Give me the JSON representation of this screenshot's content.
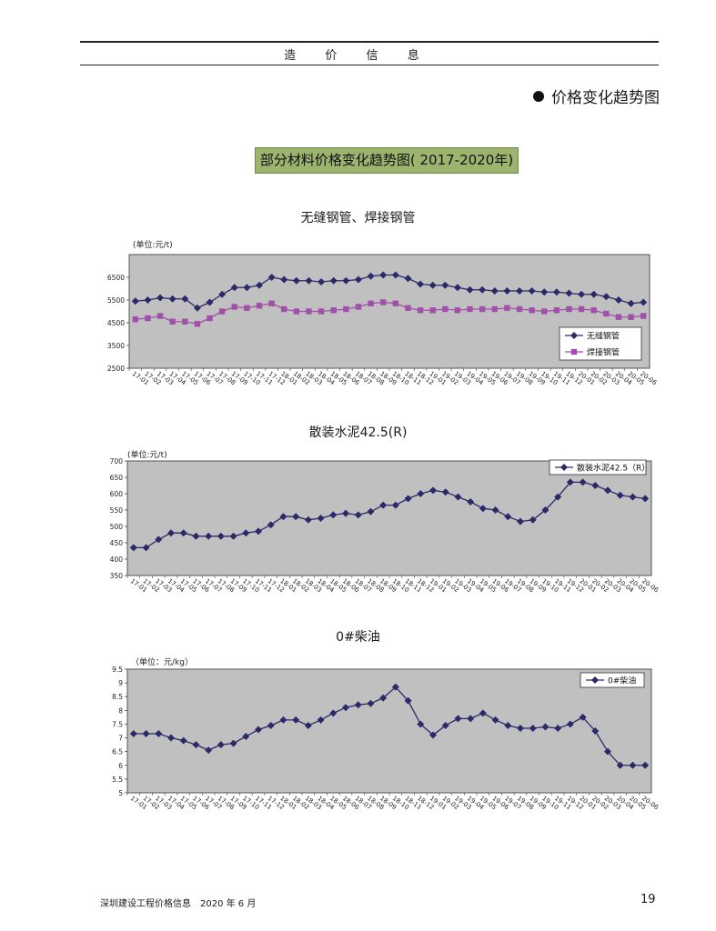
{
  "header": {
    "title": "造 价 信 息"
  },
  "section": {
    "heading": "价格变化趋势图"
  },
  "banner": {
    "text": "部分材料价格变化趋势图( 2017-2020年)"
  },
  "footer": {
    "left": "深圳建设工程价格信息　2020 年 6 月",
    "page": "19"
  },
  "colors": {
    "plot_bg": "#c0c0c0",
    "navy": "#2a2a6a",
    "magenta": "#a050a8",
    "banner": "#9cb46e"
  },
  "chart_data": [
    {
      "type": "line",
      "title": "无缝钢管、焊接钢管",
      "unit_label": "(单位:元/t)",
      "ylim": [
        2500,
        7500
      ],
      "yticks": [
        2500,
        3500,
        4500,
        5500,
        6500
      ],
      "grid": false,
      "legend": "bottom-right",
      "categories": [
        "17-01",
        "17-02",
        "17-03",
        "17-04",
        "17-05",
        "17-06",
        "17-07",
        "17-08",
        "17-09",
        "17-10",
        "17-11",
        "17-12",
        "18-01",
        "18-02",
        "18-03",
        "18-04",
        "18-05",
        "18-06",
        "18-07",
        "18-08",
        "18-09",
        "18-10",
        "18-11",
        "18-12",
        "19-01",
        "19-02",
        "19-03",
        "19-04",
        "19-05",
        "19-06",
        "19-07",
        "19-08",
        "19-09",
        "19-10",
        "19-11",
        "19-12",
        "20-01",
        "20-02",
        "20-03",
        "20-04",
        "20-05",
        "20-06"
      ],
      "series": [
        {
          "name": "无缝钢管",
          "marker": "diamond",
          "color": "#2a2a6a",
          "values": [
            5450,
            5500,
            5600,
            5550,
            5550,
            5150,
            5400,
            5750,
            6050,
            6050,
            6150,
            6500,
            6400,
            6350,
            6350,
            6300,
            6350,
            6350,
            6400,
            6550,
            6600,
            6600,
            6450,
            6200,
            6150,
            6150,
            6050,
            5950,
            5950,
            5900,
            5900,
            5900,
            5900,
            5850,
            5850,
            5800,
            5750,
            5750,
            5650,
            5500,
            5350,
            5400
          ]
        },
        {
          "name": "焊接钢管",
          "marker": "square",
          "color": "#a050a8",
          "values": [
            4650,
            4700,
            4800,
            4550,
            4550,
            4450,
            4700,
            5000,
            5200,
            5150,
            5250,
            5350,
            5100,
            5000,
            5000,
            5000,
            5050,
            5100,
            5200,
            5350,
            5400,
            5350,
            5150,
            5050,
            5050,
            5100,
            5050,
            5100,
            5100,
            5100,
            5150,
            5100,
            5050,
            5000,
            5050,
            5100,
            5100,
            5050,
            4900,
            4750,
            4750,
            4800
          ]
        }
      ]
    },
    {
      "type": "line",
      "title": "散装水泥42.5(R)",
      "unit_label": "(单位:元/t)",
      "ylim": [
        350,
        700
      ],
      "yticks": [
        350,
        400,
        450,
        500,
        550,
        600,
        650,
        700
      ],
      "grid": false,
      "legend": "top-right",
      "categories": [
        "17-01",
        "17-02",
        "17-03",
        "17-04",
        "17-05",
        "17-06",
        "17-07",
        "17-08",
        "17-09",
        "17-10",
        "17-11",
        "17-12",
        "18-01",
        "18-02",
        "18-03",
        "18-04",
        "18-05",
        "18-06",
        "18-07",
        "18-08",
        "18-09",
        "18-10",
        "18-11",
        "18-12",
        "19-01",
        "19-02",
        "19-03",
        "19-04",
        "19-05",
        "19-06",
        "19-07",
        "19-08",
        "19-09",
        "19-10",
        "19-11",
        "19-12",
        "20-01",
        "20-02",
        "20-03",
        "20-04",
        "20-05",
        "20-06"
      ],
      "series": [
        {
          "name": "散装水泥42.5（R）",
          "marker": "diamond",
          "color": "#2a2a6a",
          "values": [
            435,
            435,
            460,
            480,
            480,
            470,
            470,
            470,
            470,
            480,
            485,
            505,
            530,
            530,
            520,
            525,
            535,
            540,
            535,
            545,
            565,
            565,
            585,
            600,
            610,
            605,
            590,
            575,
            555,
            550,
            530,
            515,
            520,
            550,
            590,
            635,
            635,
            625,
            610,
            595,
            590,
            585
          ]
        }
      ]
    },
    {
      "type": "line",
      "title": "0#柴油",
      "unit_label": "（单位：元/kg）",
      "ylim": [
        5,
        9.5
      ],
      "yticks": [
        5,
        5.5,
        6,
        6.5,
        7,
        7.5,
        8,
        8.5,
        9,
        9.5
      ],
      "grid": false,
      "legend": "top-right",
      "categories": [
        "17-01",
        "17-02",
        "17-03",
        "17-04",
        "17-05",
        "17-06",
        "17-07",
        "17-08",
        "17-09",
        "17-10",
        "17-11",
        "17-12",
        "18-01",
        "18-02",
        "18-03",
        "18-04",
        "18-05",
        "18-06",
        "18-07",
        "18-08",
        "18-09",
        "18-10",
        "18-11",
        "18-12",
        "19-01",
        "19-02",
        "19-03",
        "19-04",
        "19-05",
        "19-06",
        "19-07",
        "19-08",
        "19-09",
        "19-10",
        "19-11",
        "19-12",
        "20-01",
        "20-02",
        "20-03",
        "20-04",
        "20-05",
        "20-06"
      ],
      "series": [
        {
          "name": "0#柴油",
          "marker": "diamond",
          "color": "#2a2a6a",
          "values": [
            7.15,
            7.15,
            7.15,
            7.0,
            6.9,
            6.75,
            6.55,
            6.75,
            6.8,
            7.05,
            7.3,
            7.45,
            7.65,
            7.65,
            7.45,
            7.65,
            7.9,
            8.1,
            8.2,
            8.25,
            8.45,
            8.85,
            8.35,
            7.5,
            7.1,
            7.45,
            7.7,
            7.7,
            7.9,
            7.65,
            7.45,
            7.35,
            7.35,
            7.4,
            7.35,
            7.5,
            7.75,
            7.25,
            6.5,
            6.0,
            6.0,
            6.0
          ]
        }
      ]
    }
  ]
}
